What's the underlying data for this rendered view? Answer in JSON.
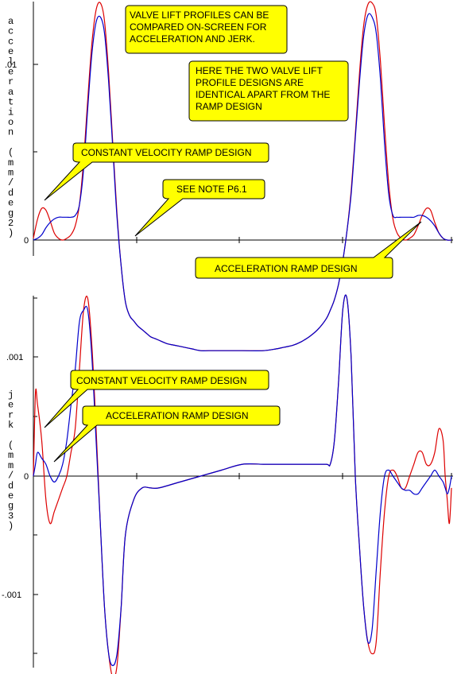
{
  "colors": {
    "series_constant_velocity": "#dd0000",
    "series_acceleration_ramp": "#0000cc",
    "callout_fill": "#ffff00",
    "callout_border": "#000000"
  },
  "notes": {
    "comparison": [
      "VALVE LIFT PROFILES CAN BE",
      "COMPARED ON-SCREEN FOR",
      "ACCELERATION AND JERK."
    ],
    "identical": [
      "HERE THE TWO VALVE LIFT",
      "PROFILE DESIGNS ARE",
      "IDENTICAL APART FROM THE",
      "RAMP DESIGN"
    ],
    "constant_velocity_top": "CONSTANT VELOCITY RAMP DESIGN",
    "see_note": "SEE NOTE P6.1",
    "acceleration_ramp_top": "ACCELERATION RAMP DESIGN",
    "constant_velocity_bottom": "CONSTANT VELOCITY RAMP DESIGN",
    "acceleration_ramp_bottom": "ACCELERATION RAMP DESIGN"
  },
  "chart_data": [
    {
      "type": "line",
      "ylabel": "acceleration (mm/deg2)",
      "yticks": [
        ".01",
        "0"
      ],
      "ylim": [
        -0.0055,
        0.0135
      ],
      "xlim": [
        0,
        100
      ],
      "legend": "none (callout annotations)",
      "series": [
        {
          "x": [
            0,
            1,
            2,
            3,
            4,
            5,
            6,
            7,
            8,
            9,
            10,
            11,
            12,
            13,
            14,
            15,
            16,
            17,
            18,
            19,
            20,
            21,
            22,
            23,
            24,
            25,
            26,
            27,
            28,
            29,
            30,
            32,
            34,
            36,
            38,
            40,
            42,
            45,
            50,
            55,
            58,
            60,
            62,
            64,
            66,
            68,
            70,
            71,
            72,
            73,
            74,
            75,
            76,
            77,
            78,
            79,
            80,
            81,
            82,
            83,
            84,
            85,
            86,
            87,
            88,
            89,
            90,
            91,
            92,
            93,
            94,
            95,
            96,
            97,
            98,
            99,
            100
          ],
          "values": [
            0.0001,
            0.0012,
            0.0018,
            0.0017,
            0.0011,
            0.0004,
            0.0001,
            0.0,
            0.0001,
            0.0003,
            0.0008,
            0.002,
            0.0045,
            0.008,
            0.0112,
            0.0131,
            0.0135,
            0.0125,
            0.0095,
            0.0055,
            0.0015,
            -0.0015,
            -0.0035,
            -0.0043,
            -0.0046,
            -0.0049,
            -0.0051,
            -0.0053,
            -0.0055,
            -0.0056,
            -0.0057,
            -0.0059,
            -0.006,
            -0.0061,
            -0.0062,
            -0.0063,
            -0.0063,
            -0.0063,
            -0.0063,
            -0.0063,
            -0.0062,
            -0.0061,
            -0.006,
            -0.0058,
            -0.0055,
            -0.0051,
            -0.0045,
            -0.004,
            -0.0034,
            -0.0025,
            -0.0012,
            0.0005,
            0.0028,
            0.006,
            0.0095,
            0.0122,
            0.0134,
            0.0135,
            0.0128,
            0.0102,
            0.0065,
            0.0032,
            0.0012,
            0.0004,
            0.0001,
            0.0,
            0.0001,
            0.0003,
            0.0008,
            0.0014,
            0.0018,
            0.0017,
            0.001,
            0.0004,
            0.0001,
            0.0,
            0.0
          ]
        },
        {
          "x": [
            0,
            1,
            2,
            3,
            4,
            5,
            6,
            7,
            8,
            9,
            10,
            11,
            12,
            13,
            14,
            15,
            16,
            17,
            18,
            19,
            20,
            21,
            22,
            23,
            24,
            25,
            26,
            27,
            28,
            29,
            30,
            32,
            34,
            36,
            38,
            40,
            42,
            45,
            50,
            55,
            58,
            60,
            62,
            64,
            66,
            68,
            70,
            71,
            72,
            73,
            74,
            75,
            76,
            77,
            78,
            79,
            80,
            81,
            82,
            83,
            84,
            85,
            86,
            87,
            88,
            89,
            90,
            91,
            92,
            93,
            94,
            95,
            96,
            97,
            98,
            99,
            100
          ],
          "values": [
            0.0,
            0.0001,
            0.0003,
            0.0007,
            0.001,
            0.0012,
            0.0013,
            0.0013,
            0.0013,
            0.0013,
            0.0014,
            0.002,
            0.004,
            0.0075,
            0.0106,
            0.0124,
            0.0127,
            0.0118,
            0.009,
            0.0052,
            0.0013,
            -0.0015,
            -0.0035,
            -0.0043,
            -0.0046,
            -0.0049,
            -0.0051,
            -0.0053,
            -0.0055,
            -0.0056,
            -0.0057,
            -0.0059,
            -0.006,
            -0.0061,
            -0.0062,
            -0.0063,
            -0.0063,
            -0.0063,
            -0.0063,
            -0.0063,
            -0.0062,
            -0.0061,
            -0.006,
            -0.0058,
            -0.0055,
            -0.0051,
            -0.0045,
            -0.004,
            -0.0034,
            -0.0025,
            -0.0012,
            0.0005,
            0.0026,
            0.0058,
            0.009,
            0.0116,
            0.0128,
            0.0127,
            0.0118,
            0.0092,
            0.0055,
            0.0026,
            0.0014,
            0.0013,
            0.0013,
            0.0013,
            0.0013,
            0.0013,
            0.0014,
            0.0014,
            0.0013,
            0.0011,
            0.0008,
            0.0004,
            0.0001,
            0.0,
            0.0
          ]
        }
      ]
    },
    {
      "type": "line",
      "ylabel": "jerk (mm/deg3)",
      "yticks": [
        ".001",
        "0",
        "-.001"
      ],
      "ylim": [
        -0.0016,
        0.0015
      ],
      "xlim": [
        0,
        100
      ],
      "legend": "none (callout annotations)",
      "series": [
        {
          "x": [
            0,
            0.5,
            1,
            2,
            3,
            4,
            5,
            6,
            7,
            8,
            9,
            10,
            11,
            12,
            13,
            14,
            15,
            16,
            17,
            18,
            19,
            20,
            21,
            22,
            24,
            26,
            28,
            30,
            35,
            40,
            45,
            50,
            55,
            60,
            65,
            70,
            71,
            72,
            73,
            74,
            75,
            76,
            77,
            78,
            79,
            80,
            81,
            82,
            83,
            84,
            85,
            86,
            87,
            88,
            89,
            90,
            91,
            92,
            93,
            94,
            95,
            96,
            97,
            98,
            98.5,
            99,
            99.5,
            100
          ],
          "values": [
            0.0,
            0.0007,
            0.0006,
            0.0003,
            -0.0002,
            -0.0004,
            -0.0003,
            -0.0002,
            -0.0001,
            0.0,
            0.0002,
            0.0004,
            0.0009,
            0.0014,
            0.0015,
            0.0011,
            0.0004,
            -0.0004,
            -0.0011,
            -0.0015,
            -0.0017,
            -0.0016,
            -0.0011,
            -0.0005,
            -0.0002,
            -0.0001,
            -0.0001,
            -0.0001,
            -5e-05,
            0.0,
            5e-05,
            0.0001,
            0.0001,
            0.0001,
            0.0001,
            0.0001,
            0.0001,
            0.0003,
            0.0008,
            0.0014,
            0.0015,
            0.001,
            0.0,
            -0.0006,
            -0.0011,
            -0.0014,
            -0.0015,
            -0.0014,
            -0.0008,
            -0.0003,
            0.0,
            5e-05,
            0.0,
            -0.0001,
            -0.0001,
            0.0,
            0.0001,
            0.0002,
            0.0002,
            0.0001,
            0.0001,
            0.0002,
            0.0004,
            0.0003,
            0.0,
            -0.0002,
            -0.0004,
            -0.0001
          ]
        },
        {
          "x": [
            0,
            0.5,
            1,
            2,
            3,
            4,
            5,
            6,
            7,
            8,
            9,
            10,
            11,
            12,
            13,
            14,
            15,
            16,
            17,
            18,
            19,
            20,
            21,
            22,
            24,
            26,
            28,
            30,
            35,
            40,
            45,
            50,
            55,
            60,
            65,
            70,
            71,
            72,
            73,
            74,
            75,
            76,
            77,
            78,
            79,
            80,
            81,
            82,
            83,
            84,
            85,
            86,
            87,
            88,
            89,
            90,
            91,
            92,
            93,
            94,
            95,
            96,
            97,
            98,
            98.5,
            99,
            99.5,
            100
          ],
          "values": [
            0.0,
            0.0001,
            0.0002,
            0.00015,
            0.0001,
            0.0,
            -5e-05,
            0.0,
            0.0001,
            0.0003,
            0.0006,
            0.0009,
            0.0013,
            0.0014,
            0.0014,
            0.001,
            0.0003,
            -0.0004,
            -0.0011,
            -0.0015,
            -0.0016,
            -0.0015,
            -0.0011,
            -0.0005,
            -0.0002,
            -0.0001,
            -0.0001,
            -0.0001,
            -5e-05,
            0.0,
            5e-05,
            0.0001,
            0.0001,
            0.0001,
            0.0001,
            0.0001,
            0.0001,
            0.0003,
            0.0008,
            0.0014,
            0.0015,
            0.001,
            0.0,
            -0.0006,
            -0.0011,
            -0.0014,
            -0.0013,
            -0.0008,
            -0.0003,
            0.0,
            5e-05,
            0.0,
            -5e-05,
            -0.0001,
            -0.00012,
            -0.00012,
            -0.00015,
            -0.00015,
            -0.0001,
            -5e-05,
            0.0,
            5e-05,
            0.0,
            -5e-05,
            -0.0001,
            -0.00015,
            -0.0001,
            0.0
          ]
        }
      ]
    }
  ]
}
